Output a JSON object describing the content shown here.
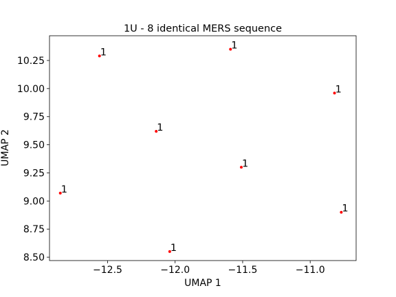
{
  "chart_data": {
    "type": "scatter",
    "title": "1U - 8 identical MERS sequence",
    "xlabel": "UMAP 1",
    "ylabel": "UMAP 2",
    "xlim": [
      -12.93,
      -10.66
    ],
    "ylim": [
      8.47,
      10.47
    ],
    "xticks": [
      -12.5,
      -12.0,
      -11.5,
      -11.0
    ],
    "xtick_labels": [
      "−12.5",
      "−12.0",
      "−11.5",
      "−11.0"
    ],
    "yticks": [
      8.5,
      8.75,
      9.0,
      9.25,
      9.5,
      9.75,
      10.0,
      10.25
    ],
    "ytick_labels": [
      "8.50",
      "8.75",
      "9.00",
      "9.25",
      "9.50",
      "9.75",
      "10.00",
      "10.25"
    ],
    "grid": false,
    "marker_color": "#ff0000",
    "points": [
      {
        "x": -12.56,
        "y": 10.29,
        "label": "1"
      },
      {
        "x": -11.59,
        "y": 10.35,
        "label": "1"
      },
      {
        "x": -10.82,
        "y": 9.96,
        "label": "1"
      },
      {
        "x": -12.14,
        "y": 9.62,
        "label": "1"
      },
      {
        "x": -11.51,
        "y": 9.3,
        "label": "1"
      },
      {
        "x": -12.85,
        "y": 9.07,
        "label": "1"
      },
      {
        "x": -10.77,
        "y": 8.9,
        "label": "1"
      },
      {
        "x": -12.04,
        "y": 8.55,
        "label": "1"
      }
    ]
  }
}
